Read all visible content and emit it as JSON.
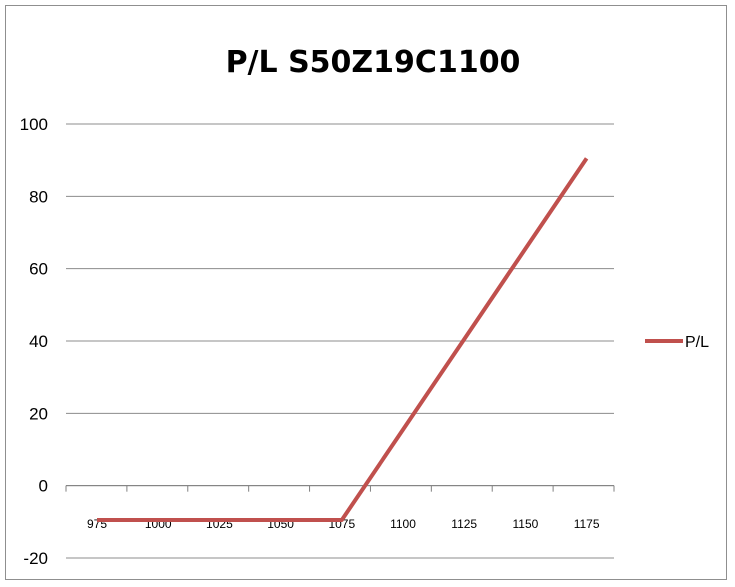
{
  "chart_data": {
    "type": "line",
    "title": "P/L S50Z19C1100",
    "xlabel": "",
    "ylabel": "",
    "ylim": [
      -20,
      100
    ],
    "yticks": [
      -20,
      0,
      20,
      40,
      60,
      80,
      100
    ],
    "categories": [
      "975",
      "1000",
      "1025",
      "1050",
      "1075",
      "1100",
      "1125",
      "1150",
      "1175"
    ],
    "series": [
      {
        "name": "P/L",
        "values": [
          -9.5,
          -9.5,
          -9.5,
          -9.5,
          -9.5,
          15.5,
          40.5,
          65.5,
          90.5
        ]
      }
    ],
    "grid": "horizontal",
    "legend": "right",
    "colors": {
      "line": "#c0504d",
      "grid": "#8c8c8c",
      "axis": "#808080"
    }
  }
}
